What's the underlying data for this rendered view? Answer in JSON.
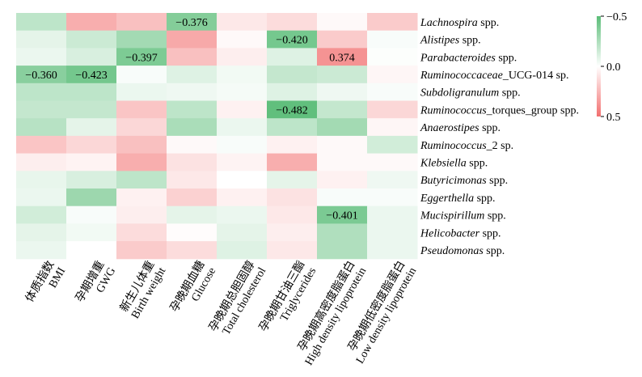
{
  "chart_data": {
    "type": "heatmap",
    "rows": [
      {
        "italic": "Lachnospira",
        "suffix": " spp."
      },
      {
        "italic": "Alistipes",
        "suffix": " spp."
      },
      {
        "italic": "Parabacteroides",
        "suffix": " spp."
      },
      {
        "italic": "Ruminococcaceae",
        "suffix": "_UCG-014 sp."
      },
      {
        "italic": "Subdoligranulum",
        "suffix": " spp."
      },
      {
        "italic": "Ruminococcus",
        "suffix": "_torques_group  spp."
      },
      {
        "italic": "Anaerostipes",
        "suffix": " spp."
      },
      {
        "italic": "Ruminococcus",
        "suffix": "_2 sp."
      },
      {
        "italic": "Klebsiella",
        "suffix": " spp."
      },
      {
        "italic": "Butyricimonas",
        "suffix": " spp."
      },
      {
        "italic": "Eggerthella",
        "suffix": " spp."
      },
      {
        "italic": "Mucispirillum",
        "suffix": " spp."
      },
      {
        "italic": "Helicobacter",
        "suffix": " spp."
      },
      {
        "italic": "Pseudomonas",
        "suffix": " spp."
      }
    ],
    "columns": [
      {
        "zh": "体质指数",
        "en": "BMI"
      },
      {
        "zh": "孕期增重",
        "en": "GWG"
      },
      {
        "zh": "新生儿体重",
        "en": "Birth weight"
      },
      {
        "zh": "孕晚期血糖",
        "en": "Glucose"
      },
      {
        "zh": "孕晚期总胆固醇",
        "en": "Total cholesterol"
      },
      {
        "zh": "孕晚期甘油三酯",
        "en": "Triglycerides"
      },
      {
        "zh": "孕晚期高密度脂蛋白",
        "en": "High density lipoprotein"
      },
      {
        "zh": "孕晚期低密度脂蛋白",
        "en": "Low density lipoprotein"
      }
    ],
    "values": [
      [
        -0.2,
        0.28,
        0.22,
        -0.376,
        0.08,
        0.12,
        0.02,
        0.18
      ],
      [
        -0.08,
        -0.16,
        -0.28,
        0.3,
        0.02,
        -0.42,
        0.18,
        -0.02
      ],
      [
        -0.06,
        -0.12,
        -0.397,
        0.22,
        0.06,
        -0.1,
        0.374,
        -0.01
      ],
      [
        -0.36,
        -0.423,
        -0.02,
        -0.1,
        -0.04,
        -0.18,
        -0.16,
        0.03
      ],
      [
        -0.2,
        -0.2,
        -0.06,
        -0.05,
        -0.03,
        -0.1,
        -0.05,
        -0.02
      ],
      [
        -0.18,
        -0.18,
        0.2,
        -0.2,
        0.05,
        -0.482,
        -0.18,
        0.14
      ],
      [
        -0.22,
        -0.08,
        0.14,
        -0.26,
        -0.06,
        -0.2,
        -0.28,
        0.03
      ],
      [
        0.2,
        0.14,
        0.22,
        0.02,
        -0.02,
        0.05,
        0.02,
        -0.14
      ],
      [
        0.06,
        0.04,
        0.28,
        0.1,
        0.04,
        0.28,
        0.02,
        0.02
      ],
      [
        -0.07,
        -0.12,
        -0.2,
        0.08,
        0.0,
        -0.08,
        0.05,
        -0.05
      ],
      [
        -0.06,
        -0.3,
        0.05,
        0.16,
        0.05,
        0.1,
        -0.02,
        -0.02
      ],
      [
        -0.14,
        -0.02,
        0.06,
        -0.08,
        -0.06,
        0.08,
        -0.401,
        -0.06
      ],
      [
        -0.08,
        -0.04,
        0.12,
        0.01,
        -0.08,
        0.06,
        -0.24,
        -0.06
      ],
      [
        -0.06,
        0.0,
        0.18,
        0.12,
        -0.1,
        0.08,
        -0.24,
        -0.06
      ]
    ],
    "annotations": [
      {
        "row": 0,
        "col": 3,
        "text": "−0.376"
      },
      {
        "row": 1,
        "col": 5,
        "text": "−0.420"
      },
      {
        "row": 2,
        "col": 2,
        "text": "−0.397"
      },
      {
        "row": 2,
        "col": 6,
        "text": "0.374"
      },
      {
        "row": 3,
        "col": 0,
        "text": "−0.360"
      },
      {
        "row": 3,
        "col": 1,
        "text": "−0.423"
      },
      {
        "row": 5,
        "col": 5,
        "text": "−0.482"
      },
      {
        "row": 11,
        "col": 6,
        "text": "−0.401"
      }
    ],
    "colorbar": {
      "range": [
        -0.5,
        0.5
      ],
      "low_color": "#5bbd78",
      "mid_color": "#ffffff",
      "high_color": "#f26f6f",
      "tick_labels": [
        "−0.5",
        "0.0",
        "0.5"
      ]
    }
  }
}
